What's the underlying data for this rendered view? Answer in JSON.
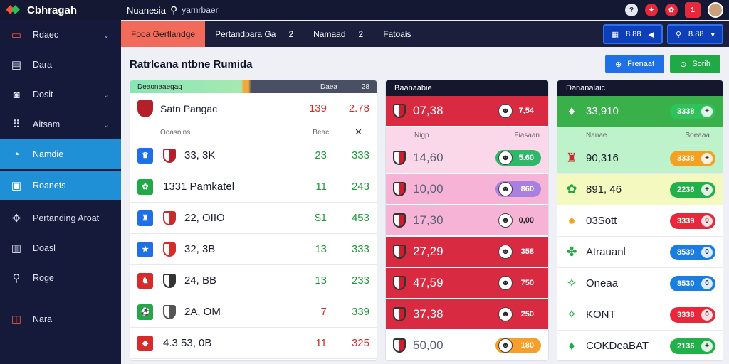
{
  "topbar": {
    "brand": "Cbhragah",
    "search_label": "Nuanesia",
    "search_placeholder": "yarnrbaer",
    "icons": [
      "help-icon",
      "alert-icon",
      "settings-icon",
      "notification-icon"
    ],
    "notification_count": "1"
  },
  "sidebar": {
    "items": [
      {
        "label": "Rdaec",
        "icon": "monitor-icon",
        "chev": true,
        "active": false
      },
      {
        "label": "Dara",
        "icon": "folder-icon",
        "chev": false,
        "active": false
      },
      {
        "label": "Dosit",
        "icon": "camera-icon",
        "chev": true,
        "active": false
      },
      {
        "label": "Aitsam",
        "icon": "grid-icon",
        "chev": true,
        "active": false
      },
      {
        "label": "Namdie",
        "icon": "gauge-icon",
        "chev": false,
        "active": true
      },
      {
        "label": "Roanets",
        "icon": "card-icon",
        "chev": false,
        "active": true
      },
      {
        "label": "Pertanding Aroat",
        "icon": "puzzle-icon",
        "chev": false,
        "active": false
      },
      {
        "label": "Doasl",
        "icon": "clipboard-icon",
        "chev": false,
        "active": false
      },
      {
        "label": "Roge",
        "icon": "search-icon",
        "chev": false,
        "active": false
      },
      {
        "label": "Nara",
        "icon": "exit-icon",
        "chev": false,
        "active": false
      }
    ]
  },
  "tabs": [
    {
      "label": "Fooa Gertlandge",
      "count": "",
      "active": true
    },
    {
      "label": "Pertandpara Ga",
      "count": "2",
      "active": false
    },
    {
      "label": "Namaad",
      "count": "2",
      "active": false
    },
    {
      "label": "Fatoais",
      "count": "",
      "active": false
    }
  ],
  "tab_actions": [
    {
      "icon": "calendar-icon",
      "label": "8.88",
      "trail": "◀"
    },
    {
      "icon": "search-icon",
      "label": "8.88",
      "trail": "▾"
    }
  ],
  "content": {
    "title": "Ratrlcana ntbne Rumida",
    "buttons": [
      {
        "label": "Frenaat",
        "icon": "plus-icon",
        "color": "#1f6fe6"
      },
      {
        "label": "Sorih",
        "icon": "refresh-icon",
        "color": "#1faa45"
      }
    ]
  },
  "panel1": {
    "header_left": "Deaonaaegag",
    "header_col1": "Daea",
    "header_col2": "28",
    "featured": {
      "name": "Satn Pangac",
      "v1": "139",
      "v2": "2.78"
    },
    "sub": {
      "left": "Ooasnins",
      "right": "Beac",
      "close": "✕"
    },
    "rows": [
      {
        "icon_color": "#1f6fe6",
        "icon": "♛",
        "crest_color": "#b3202a",
        "name": "33, 3K",
        "v1": "23",
        "v2": "333",
        "c1": "#1e9a3c",
        "c2": "#1e9a3c"
      },
      {
        "icon_color": "#1faa45",
        "icon": "✿",
        "crest_color": "",
        "name": "1331 Pamkatel",
        "v1": "11",
        "v2": "243",
        "c1": "#1e9a3c",
        "c2": "#1e9a3c"
      },
      {
        "icon_color": "#1f6fe6",
        "icon": "♜",
        "crest_color": "#c82b2b",
        "name": "22, OIIO",
        "v1": "$1",
        "v2": "453",
        "c1": "#1e9a3c",
        "c2": "#1e9a3c"
      },
      {
        "icon_color": "#1f6fe6",
        "icon": "★",
        "crest_color": "#d62b2b",
        "name": "32, 3B",
        "v1": "13",
        "v2": "333",
        "c1": "#1e9a3c",
        "c2": "#1e9a3c"
      },
      {
        "icon_color": "#d62b2b",
        "icon": "♞",
        "crest_color": "#333",
        "name": "24, BB",
        "v1": "13",
        "v2": "233",
        "c1": "#1e9a3c",
        "c2": "#1e9a3c"
      },
      {
        "icon_color": "#1faa45",
        "icon": "⚽",
        "crest_color": "#555",
        "name": "2A, OM",
        "v1": "7",
        "v2": "339",
        "c1": "#d62b2b",
        "c2": "#1e9a3c"
      },
      {
        "icon_color": "#d62b2b",
        "icon": "◆",
        "crest_color": "",
        "name": "4.3 53, 0B",
        "v1": "11",
        "v2": "325",
        "c1": "#d62b2b",
        "c2": "#d62b2b"
      }
    ]
  },
  "panel2": {
    "header": "Baanaabie",
    "sub": {
      "left": "Nigp",
      "right": "Fiasaan"
    },
    "rows": [
      {
        "bg": "#d82a41",
        "value": "07,38",
        "pill": "7,54",
        "pill_color": "",
        "dark": true
      },
      {
        "bg": "#fbd7ea",
        "value": "14,60",
        "pill": "5.60",
        "pill_color": "#2fb86a",
        "dark": false
      },
      {
        "bg": "#f6b3d6",
        "value": "10,00",
        "pill": "860",
        "pill_color": "#a97fe0",
        "dark": false
      },
      {
        "bg": "#f6b3d6",
        "value": "17,30",
        "pill": "0,00",
        "pill_color": "",
        "dark": false
      },
      {
        "bg": "#d82a41",
        "value": "27,29",
        "pill": "358",
        "pill_color": "",
        "dark": true
      },
      {
        "bg": "#d82a41",
        "value": "47,59",
        "pill": "750",
        "pill_color": "",
        "dark": true
      },
      {
        "bg": "#d82a41",
        "value": "37,38",
        "pill": "250",
        "pill_color": "",
        "dark": true
      },
      {
        "bg": "#ffffff",
        "value": "50,00",
        "pill": "180",
        "pill_color": "#f4a02a",
        "dark": false
      }
    ]
  },
  "panel3": {
    "header": "Dananalaic",
    "sub": {
      "left": "Nanae",
      "right": "Soeaaa"
    },
    "rows": [
      {
        "bg": "#3ab04b",
        "icon": "♦",
        "icon_color": "#ffffff",
        "text": "33,910",
        "pill": "3338",
        "pill_color": "#2fc15a",
        "trail": "+",
        "dark": true
      },
      {
        "bg": "#bdf2ca",
        "icon": "♜",
        "icon_color": "#c82b2b",
        "text": "90,316",
        "pill": "3338",
        "pill_color": "#f4a020",
        "trail": "+",
        "dark": false
      },
      {
        "bg": "#f3f9bf",
        "icon": "✿",
        "icon_color": "#1faa45",
        "text": "891, 46",
        "pill": "2236",
        "pill_color": "#22b04a",
        "trail": "+",
        "dark": false
      },
      {
        "bg": "#ffffff",
        "icon": "●",
        "icon_color": "#f4a020",
        "text": "03Sott",
        "pill": "3339",
        "pill_color": "#e6283a",
        "trail": "0",
        "dark": false
      },
      {
        "bg": "#ffffff",
        "icon": "✤",
        "icon_color": "#1faa45",
        "text": "Atrauanl",
        "pill": "8539",
        "pill_color": "#1a7de0",
        "trail": "0",
        "dark": false
      },
      {
        "bg": "#ffffff",
        "icon": "✧",
        "icon_color": "#1faa45",
        "text": "Oneaa",
        "pill": "8530",
        "pill_color": "#1a7de0",
        "trail": "0",
        "dark": false
      },
      {
        "bg": "#ffffff",
        "icon": "✧",
        "icon_color": "#1faa45",
        "text": "KONT",
        "pill": "3338",
        "pill_color": "#e6283a",
        "trail": "0",
        "dark": false
      },
      {
        "bg": "#ffffff",
        "icon": "♦",
        "icon_color": "#1faa45",
        "text": "COKDeaBAT",
        "pill": "2136",
        "pill_color": "#22b04a",
        "trail": "+",
        "dark": false
      }
    ]
  }
}
